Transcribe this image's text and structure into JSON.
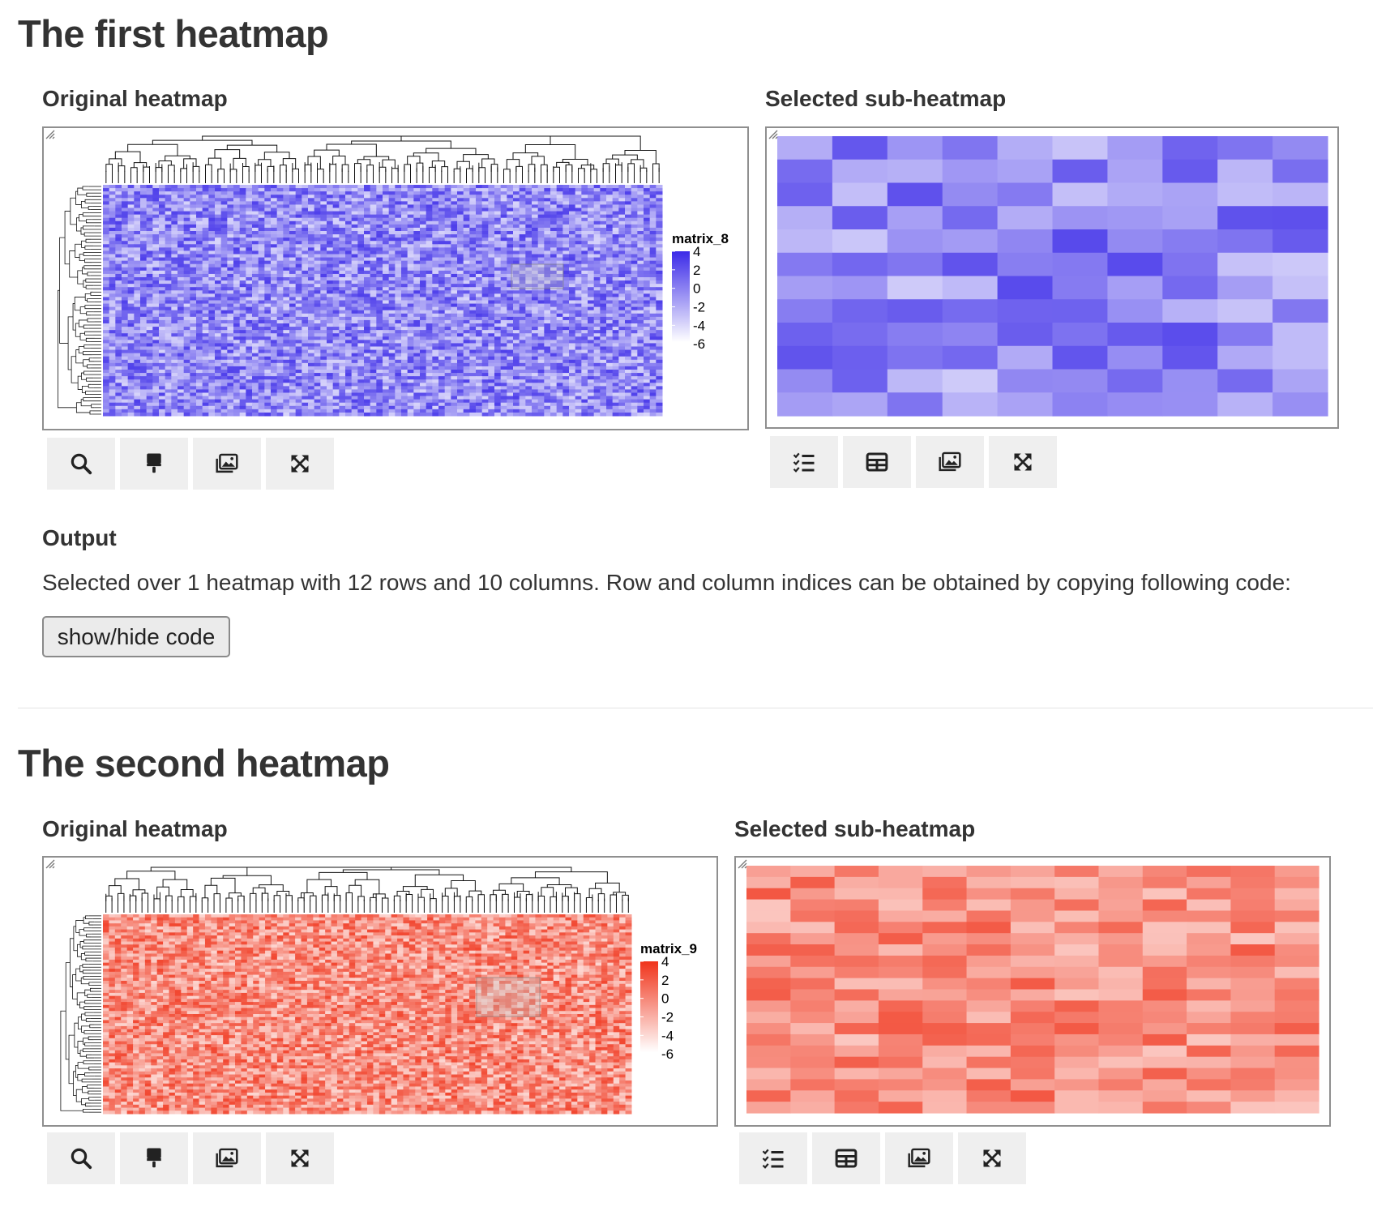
{
  "first": {
    "title": "The first heatmap",
    "original_label": "Original heatmap",
    "sub_label": "Selected sub-heatmap",
    "legend": {
      "title": "matrix_8",
      "ticks": [
        "4",
        "2",
        "0",
        "-2",
        "-4",
        "-6"
      ]
    },
    "color_high": "#3b2ae8",
    "color_low": "#ffffff",
    "selection": {
      "rows": 12,
      "columns": 10
    }
  },
  "output": {
    "label": "Output",
    "text": "Selected over 1 heatmap with 12 rows and 10 columns. Row and column indices can be obtained by copying following code:",
    "button": "show/hide code"
  },
  "second": {
    "title": "The second heatmap",
    "original_label": "Original heatmap",
    "sub_label": "Selected sub-heatmap",
    "legend": {
      "title": "matrix_9",
      "ticks": [
        "4",
        "2",
        "0",
        "-2",
        "-4",
        "-6"
      ]
    },
    "color_high": "#f0331a",
    "color_low": "#ffffff"
  },
  "toolbar_icons": {
    "original": [
      "search-icon",
      "brush-icon",
      "image-icon",
      "expand-icon"
    ],
    "sub": [
      "list-icon",
      "table-icon",
      "image-icon",
      "expand-icon"
    ]
  }
}
